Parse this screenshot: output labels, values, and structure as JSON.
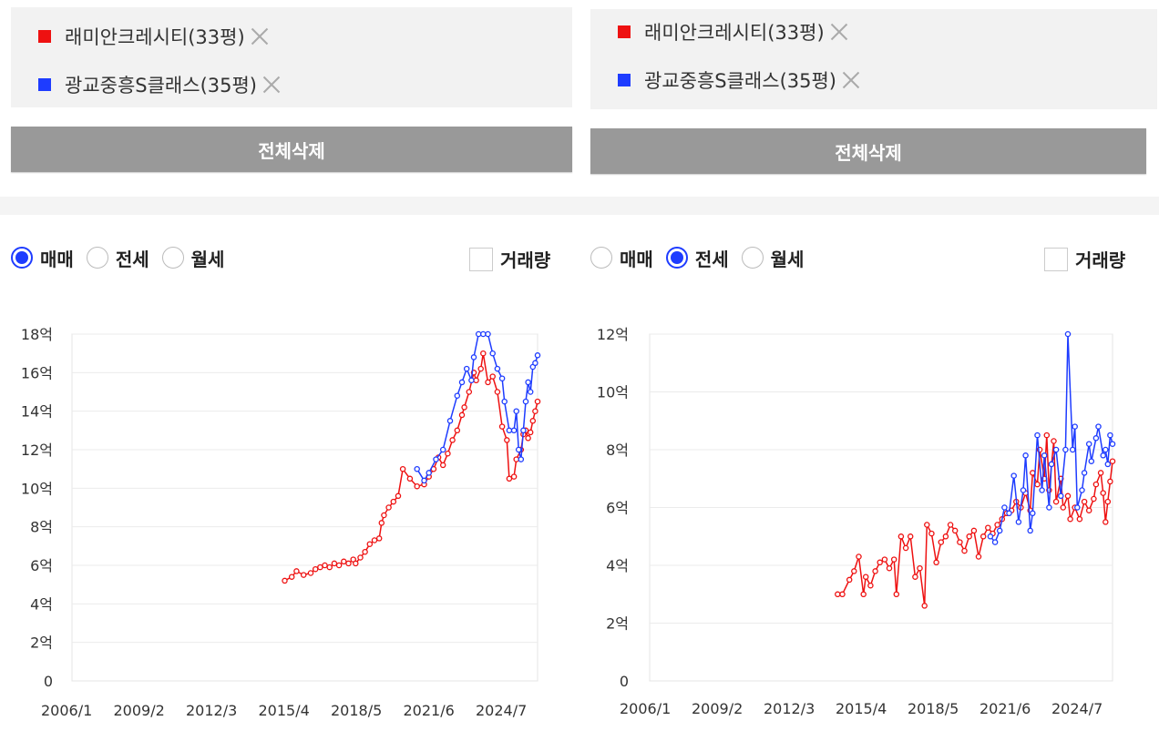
{
  "panels": [
    {
      "legend": [
        {
          "label": "래미안크레시티(33평)",
          "color": "#ee1111"
        },
        {
          "label": "광교중흥S클래스(35평)",
          "color": "#1e3cff"
        }
      ],
      "delete_all_label": "전체삭제",
      "radios": [
        {
          "label": "매매",
          "selected": true
        },
        {
          "label": "전세",
          "selected": false
        },
        {
          "label": "월세",
          "selected": false
        }
      ],
      "volume_label": "거래량",
      "volume_checked": false
    },
    {
      "legend": [
        {
          "label": "래미안크레시티(33평)",
          "color": "#ee1111"
        },
        {
          "label": "광교중흥S클래스(35평)",
          "color": "#1e3cff"
        }
      ],
      "delete_all_label": "전체삭제",
      "radios": [
        {
          "label": "매매",
          "selected": false
        },
        {
          "label": "전세",
          "selected": true
        },
        {
          "label": "월세",
          "selected": false
        }
      ],
      "volume_label": "거래량",
      "volume_checked": false
    }
  ],
  "chart_data": [
    {
      "type": "line",
      "x_ticks": [
        "2006/1",
        "2009/2",
        "2012/3",
        "2015/4",
        "2018/5",
        "2021/6",
        "2024/7"
      ],
      "y_ticks": [
        "0",
        "2억",
        "4억",
        "6억",
        "8억",
        "10억",
        "12억",
        "14억",
        "16억",
        "18억"
      ],
      "ylim": [
        0,
        18
      ],
      "xlim": [
        2006.0,
        2025.7
      ],
      "grid": "horizontal",
      "series": [
        {
          "name": "래미안크레시티(33평)",
          "color": "#ee1111",
          "points": [
            [
              2015.0,
              5.2
            ],
            [
              2015.3,
              5.4
            ],
            [
              2015.5,
              5.7
            ],
            [
              2015.8,
              5.5
            ],
            [
              2016.1,
              5.6
            ],
            [
              2016.3,
              5.8
            ],
            [
              2016.5,
              5.9
            ],
            [
              2016.7,
              6.0
            ],
            [
              2016.9,
              5.9
            ],
            [
              2017.1,
              6.1
            ],
            [
              2017.3,
              6.0
            ],
            [
              2017.5,
              6.2
            ],
            [
              2017.7,
              6.1
            ],
            [
              2017.9,
              6.3
            ],
            [
              2018.0,
              6.1
            ],
            [
              2018.2,
              6.4
            ],
            [
              2018.4,
              6.7
            ],
            [
              2018.6,
              7.1
            ],
            [
              2018.8,
              7.3
            ],
            [
              2019.0,
              7.4
            ],
            [
              2019.1,
              8.2
            ],
            [
              2019.2,
              8.6
            ],
            [
              2019.4,
              9.0
            ],
            [
              2019.6,
              9.3
            ],
            [
              2019.8,
              9.6
            ],
            [
              2020.0,
              11.0
            ],
            [
              2020.3,
              10.5
            ],
            [
              2020.6,
              10.1
            ],
            [
              2020.9,
              10.2
            ],
            [
              2021.1,
              10.6
            ],
            [
              2021.3,
              11.0
            ],
            [
              2021.5,
              11.6
            ],
            [
              2021.7,
              11.2
            ],
            [
              2021.9,
              11.8
            ],
            [
              2022.1,
              12.5
            ],
            [
              2022.3,
              13.0
            ],
            [
              2022.5,
              13.8
            ],
            [
              2022.6,
              14.2
            ],
            [
              2022.8,
              15.0
            ],
            [
              2023.0,
              16.0
            ],
            [
              2023.1,
              15.6
            ],
            [
              2023.3,
              16.2
            ],
            [
              2023.4,
              17.0
            ],
            [
              2023.6,
              15.5
            ],
            [
              2023.8,
              15.8
            ],
            [
              2024.0,
              15.0
            ],
            [
              2024.2,
              13.2
            ],
            [
              2024.4,
              12.5
            ],
            [
              2024.5,
              10.5
            ],
            [
              2024.7,
              10.6
            ],
            [
              2024.8,
              11.5
            ],
            [
              2025.0,
              12.0
            ],
            [
              2025.1,
              12.8
            ],
            [
              2025.2,
              13.0
            ],
            [
              2025.3,
              12.6
            ],
            [
              2025.4,
              12.9
            ],
            [
              2025.5,
              13.5
            ],
            [
              2025.6,
              14.0
            ],
            [
              2025.7,
              14.5
            ]
          ]
        },
        {
          "name": "광교중흥S클래스(35평)",
          "color": "#1e3cff",
          "points": [
            [
              2020.6,
              11.0
            ],
            [
              2020.9,
              10.4
            ],
            [
              2021.1,
              10.8
            ],
            [
              2021.4,
              11.5
            ],
            [
              2021.7,
              12.0
            ],
            [
              2022.0,
              13.5
            ],
            [
              2022.3,
              14.8
            ],
            [
              2022.5,
              15.5
            ],
            [
              2022.7,
              16.2
            ],
            [
              2022.9,
              15.6
            ],
            [
              2023.0,
              16.8
            ],
            [
              2023.2,
              18.0
            ],
            [
              2023.4,
              18.0
            ],
            [
              2023.6,
              18.0
            ],
            [
              2023.8,
              17.0
            ],
            [
              2024.0,
              16.2
            ],
            [
              2024.2,
              15.7
            ],
            [
              2024.3,
              14.5
            ],
            [
              2024.5,
              13.0
            ],
            [
              2024.7,
              13.0
            ],
            [
              2024.8,
              14.0
            ],
            [
              2024.9,
              12.0
            ],
            [
              2025.0,
              11.5
            ],
            [
              2025.1,
              13.0
            ],
            [
              2025.2,
              14.5
            ],
            [
              2025.3,
              15.5
            ],
            [
              2025.4,
              15.0
            ],
            [
              2025.5,
              16.3
            ],
            [
              2025.6,
              16.5
            ],
            [
              2025.7,
              16.9
            ]
          ]
        }
      ]
    },
    {
      "type": "line",
      "x_ticks": [
        "2006/1",
        "2009/2",
        "2012/3",
        "2015/4",
        "2018/5",
        "2021/6",
        "2024/7"
      ],
      "y_ticks": [
        "0",
        "2억",
        "4억",
        "6억",
        "8억",
        "10억",
        "12억"
      ],
      "ylim": [
        0,
        12
      ],
      "xlim": [
        2006.0,
        2025.7
      ],
      "grid": "horizontal",
      "series": [
        {
          "name": "래미안크레시티(33평)",
          "color": "#ee1111",
          "points": [
            [
              2014.0,
              3.0
            ],
            [
              2014.2,
              3.0
            ],
            [
              2014.5,
              3.5
            ],
            [
              2014.7,
              3.8
            ],
            [
              2014.9,
              4.3
            ],
            [
              2015.1,
              3.0
            ],
            [
              2015.2,
              3.6
            ],
            [
              2015.4,
              3.3
            ],
            [
              2015.6,
              3.8
            ],
            [
              2015.8,
              4.1
            ],
            [
              2016.0,
              4.2
            ],
            [
              2016.2,
              3.9
            ],
            [
              2016.4,
              4.2
            ],
            [
              2016.5,
              3.0
            ],
            [
              2016.7,
              5.0
            ],
            [
              2016.9,
              4.6
            ],
            [
              2017.1,
              5.0
            ],
            [
              2017.3,
              3.6
            ],
            [
              2017.5,
              3.9
            ],
            [
              2017.7,
              2.6
            ],
            [
              2017.8,
              5.4
            ],
            [
              2018.0,
              5.1
            ],
            [
              2018.2,
              4.1
            ],
            [
              2018.4,
              4.8
            ],
            [
              2018.6,
              5.0
            ],
            [
              2018.8,
              5.4
            ],
            [
              2019.0,
              5.2
            ],
            [
              2019.2,
              4.8
            ],
            [
              2019.4,
              4.5
            ],
            [
              2019.6,
              5.0
            ],
            [
              2019.8,
              5.2
            ],
            [
              2020.0,
              4.3
            ],
            [
              2020.2,
              5.0
            ],
            [
              2020.4,
              5.3
            ],
            [
              2020.6,
              5.1
            ],
            [
              2020.8,
              5.4
            ],
            [
              2021.0,
              5.6
            ],
            [
              2021.2,
              5.8
            ],
            [
              2021.4,
              5.9
            ],
            [
              2021.6,
              6.2
            ],
            [
              2021.8,
              6.0
            ],
            [
              2022.0,
              6.5
            ],
            [
              2022.2,
              5.9
            ],
            [
              2022.3,
              7.2
            ],
            [
              2022.5,
              6.8
            ],
            [
              2022.6,
              8.0
            ],
            [
              2022.8,
              7.0
            ],
            [
              2022.9,
              8.5
            ],
            [
              2023.0,
              6.6
            ],
            [
              2023.2,
              8.3
            ],
            [
              2023.3,
              6.2
            ],
            [
              2023.5,
              7.0
            ],
            [
              2023.6,
              6.0
            ],
            [
              2023.8,
              6.4
            ],
            [
              2023.9,
              5.6
            ],
            [
              2024.1,
              6.0
            ],
            [
              2024.3,
              5.6
            ],
            [
              2024.5,
              6.2
            ],
            [
              2024.7,
              5.9
            ],
            [
              2024.9,
              6.3
            ],
            [
              2025.0,
              6.8
            ],
            [
              2025.2,
              7.2
            ],
            [
              2025.3,
              6.5
            ],
            [
              2025.4,
              5.5
            ],
            [
              2025.5,
              6.2
            ],
            [
              2025.6,
              6.9
            ],
            [
              2025.7,
              7.6
            ]
          ]
        },
        {
          "name": "광교중흥S클래스(35평)",
          "color": "#1e3cff",
          "points": [
            [
              2020.5,
              5.0
            ],
            [
              2020.7,
              4.8
            ],
            [
              2020.9,
              5.2
            ],
            [
              2021.1,
              6.0
            ],
            [
              2021.3,
              5.8
            ],
            [
              2021.5,
              7.1
            ],
            [
              2021.7,
              5.5
            ],
            [
              2021.9,
              6.6
            ],
            [
              2022.0,
              7.8
            ],
            [
              2022.2,
              5.2
            ],
            [
              2022.3,
              5.8
            ],
            [
              2022.5,
              8.5
            ],
            [
              2022.7,
              6.6
            ],
            [
              2022.8,
              7.8
            ],
            [
              2023.0,
              6.0
            ],
            [
              2023.1,
              7.5
            ],
            [
              2023.3,
              8.0
            ],
            [
              2023.5,
              6.4
            ],
            [
              2023.7,
              8.0
            ],
            [
              2023.8,
              12.0
            ],
            [
              2024.0,
              8.0
            ],
            [
              2024.1,
              8.8
            ],
            [
              2024.2,
              6.0
            ],
            [
              2024.4,
              6.6
            ],
            [
              2024.5,
              7.2
            ],
            [
              2024.7,
              8.2
            ],
            [
              2024.8,
              7.6
            ],
            [
              2025.0,
              8.4
            ],
            [
              2025.1,
              8.8
            ],
            [
              2025.3,
              7.8
            ],
            [
              2025.4,
              8.0
            ],
            [
              2025.5,
              7.5
            ],
            [
              2025.6,
              8.5
            ],
            [
              2025.7,
              8.2
            ]
          ]
        }
      ]
    }
  ]
}
